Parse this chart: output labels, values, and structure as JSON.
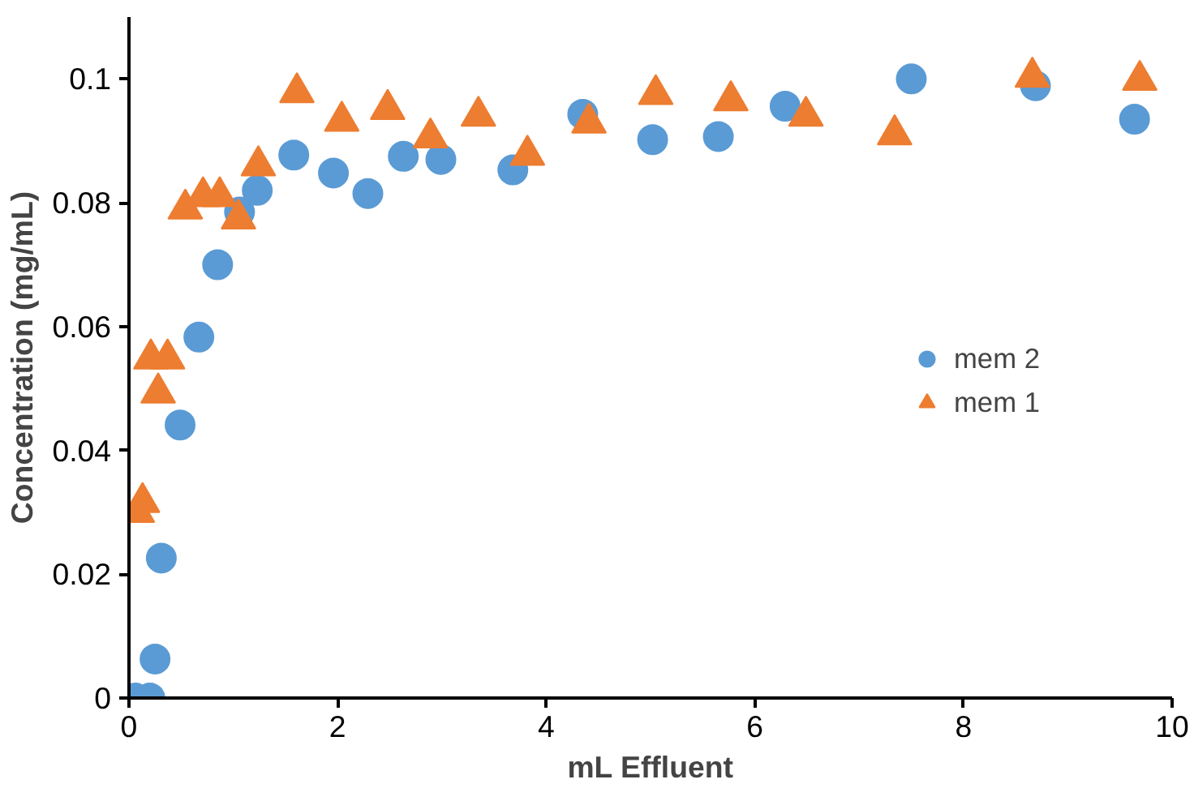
{
  "chart_data": {
    "type": "scatter",
    "xlabel": "mL Effluent",
    "ylabel": "Concentration (mg/mL)",
    "xlim": [
      0,
      10
    ],
    "ylim": [
      0,
      0.11
    ],
    "xticks": [
      0,
      2,
      4,
      6,
      8,
      10
    ],
    "yticks": [
      0,
      0.02,
      0.04,
      0.06,
      0.08,
      0.1
    ],
    "grid": false,
    "legend": "right",
    "series": [
      {
        "name": "mem 2",
        "color": "#5b9bd5",
        "marker": "circle",
        "x": [
          0.06,
          0.2,
          0.25,
          0.31,
          0.49,
          0.67,
          0.85,
          1.06,
          1.23,
          1.58,
          1.96,
          2.29,
          2.63,
          2.99,
          3.68,
          4.35,
          5.02,
          5.65,
          6.29,
          7.5,
          8.69,
          9.64
        ],
        "values": [
          0,
          0,
          0.0063,
          0.0226,
          0.0441,
          0.0583,
          0.07,
          0.0785,
          0.082,
          0.0877,
          0.0848,
          0.0815,
          0.0875,
          0.087,
          0.0853,
          0.0943,
          0.0902,
          0.0907,
          0.0956,
          0.1,
          0.0989,
          0.0935
        ]
      },
      {
        "name": "mem 1",
        "color": "#ed7d31",
        "marker": "triangle",
        "x": [
          0.08,
          0.13,
          0.21,
          0.28,
          0.37,
          0.54,
          0.71,
          0.87,
          1.05,
          1.24,
          1.61,
          2.04,
          2.48,
          2.89,
          3.35,
          3.82,
          4.41,
          5.05,
          5.77,
          6.49,
          7.34,
          8.66,
          9.69
        ],
        "values": [
          0.03,
          0.0316,
          0.0548,
          0.0493,
          0.0548,
          0.079,
          0.081,
          0.081,
          0.0774,
          0.086,
          0.0978,
          0.0932,
          0.0951,
          0.0905,
          0.094,
          0.0877,
          0.0929,
          0.0975,
          0.0965,
          0.094,
          0.091,
          0.1003,
          0.0998
        ]
      }
    ]
  }
}
